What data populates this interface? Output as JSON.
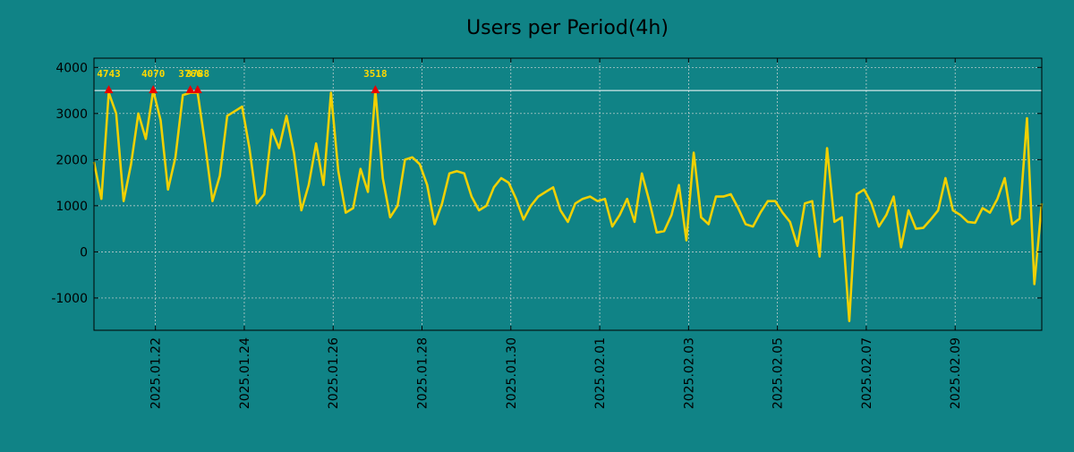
{
  "chart_data": {
    "type": "line",
    "title": "Users per Period(4h)",
    "xlabel": "",
    "ylabel": "",
    "ylim": [
      -1700,
      4200
    ],
    "yticks": [
      -1000,
      0,
      1000,
      2000,
      3000,
      4000
    ],
    "ytick_labels": [
      "-1000",
      "0",
      "1000",
      "2000",
      "3000",
      "4000"
    ],
    "xlim": [
      0,
      128
    ],
    "xticks": [
      8.3,
      20.3,
      32.3,
      44.3,
      56.3,
      68.3,
      80.3,
      92.3,
      104.3,
      116.3
    ],
    "xtick_labels": [
      "2025.01.22",
      "2025.01.24",
      "2025.01.26",
      "2025.01.28",
      "2025.01.30",
      "2025.02.01",
      "2025.02.03",
      "2025.02.05",
      "2025.02.07",
      "2025.02.09"
    ],
    "threshold": 3500,
    "series": [
      {
        "name": "users",
        "color": "#f0d000",
        "x": [
          0,
          1,
          2,
          3,
          4,
          5,
          6,
          7,
          8,
          9,
          10,
          11,
          12,
          13,
          14,
          15,
          16,
          17,
          18,
          19,
          20,
          21,
          22,
          23,
          24,
          25,
          26,
          27,
          28,
          29,
          30,
          31,
          32,
          33,
          34,
          35,
          36,
          37,
          38,
          39,
          40,
          41,
          42,
          43,
          44,
          45,
          46,
          47,
          48,
          49,
          50,
          51,
          52,
          53,
          54,
          55,
          56,
          57,
          58,
          59,
          60,
          61,
          62,
          63,
          64,
          65,
          66,
          67,
          68,
          69,
          70,
          71,
          72,
          73,
          74,
          75,
          76,
          77,
          78,
          79,
          80,
          81,
          82,
          83,
          84,
          85,
          86,
          87,
          88,
          89,
          90,
          91,
          92,
          93,
          94,
          95,
          96,
          97,
          98,
          99,
          100,
          101,
          102,
          103,
          104,
          105,
          106,
          107,
          108,
          109,
          110,
          111,
          112,
          113,
          114,
          115,
          116,
          117,
          118,
          119,
          120,
          121,
          122,
          123,
          124,
          125,
          126,
          127,
          128
        ],
        "values": [
          1950,
          1150,
          3450,
          3000,
          1100,
          1900,
          3000,
          2450,
          3500,
          2850,
          1350,
          2050,
          3400,
          3450,
          3450,
          2350,
          1100,
          1650,
          2950,
          3050,
          3150,
          2250,
          1050,
          1250,
          2650,
          2250,
          2950,
          2150,
          900,
          1450,
          2350,
          1450,
          3450,
          1750,
          850,
          950,
          1800,
          1300,
          3500,
          1600,
          750,
          1000,
          2000,
          2050,
          1900,
          1450,
          600,
          1050,
          1700,
          1750,
          1700,
          1200,
          900,
          1000,
          1400,
          1600,
          1500,
          1150,
          700,
          1000,
          1200,
          1300,
          1400,
          900,
          650,
          1050,
          1150,
          1200,
          1100,
          1150,
          550,
          800,
          1150,
          650,
          1700,
          1100,
          420,
          450,
          800,
          1450,
          250,
          2150,
          750,
          600,
          1200,
          1200,
          1250,
          950,
          600,
          550,
          850,
          1100,
          1100,
          850,
          650,
          130,
          1050,
          1100,
          -100,
          2250,
          650,
          750,
          -1500,
          1250,
          1350,
          1050,
          550,
          800,
          1200,
          100,
          900,
          500,
          520,
          700,
          900,
          1600,
          900,
          800,
          650,
          630,
          950,
          850,
          1150,
          1600,
          600,
          720,
          2900,
          -700,
          1050
        ]
      }
    ],
    "peaks": [
      {
        "x": 2,
        "y": 3500,
        "label": "4743"
      },
      {
        "x": 8,
        "y": 3500,
        "label": "4070"
      },
      {
        "x": 13,
        "y": 3500,
        "label": "3766"
      },
      {
        "x": 14,
        "y": 3500,
        "label": "3788"
      },
      {
        "x": 38,
        "y": 3500,
        "label": "3518"
      }
    ]
  }
}
